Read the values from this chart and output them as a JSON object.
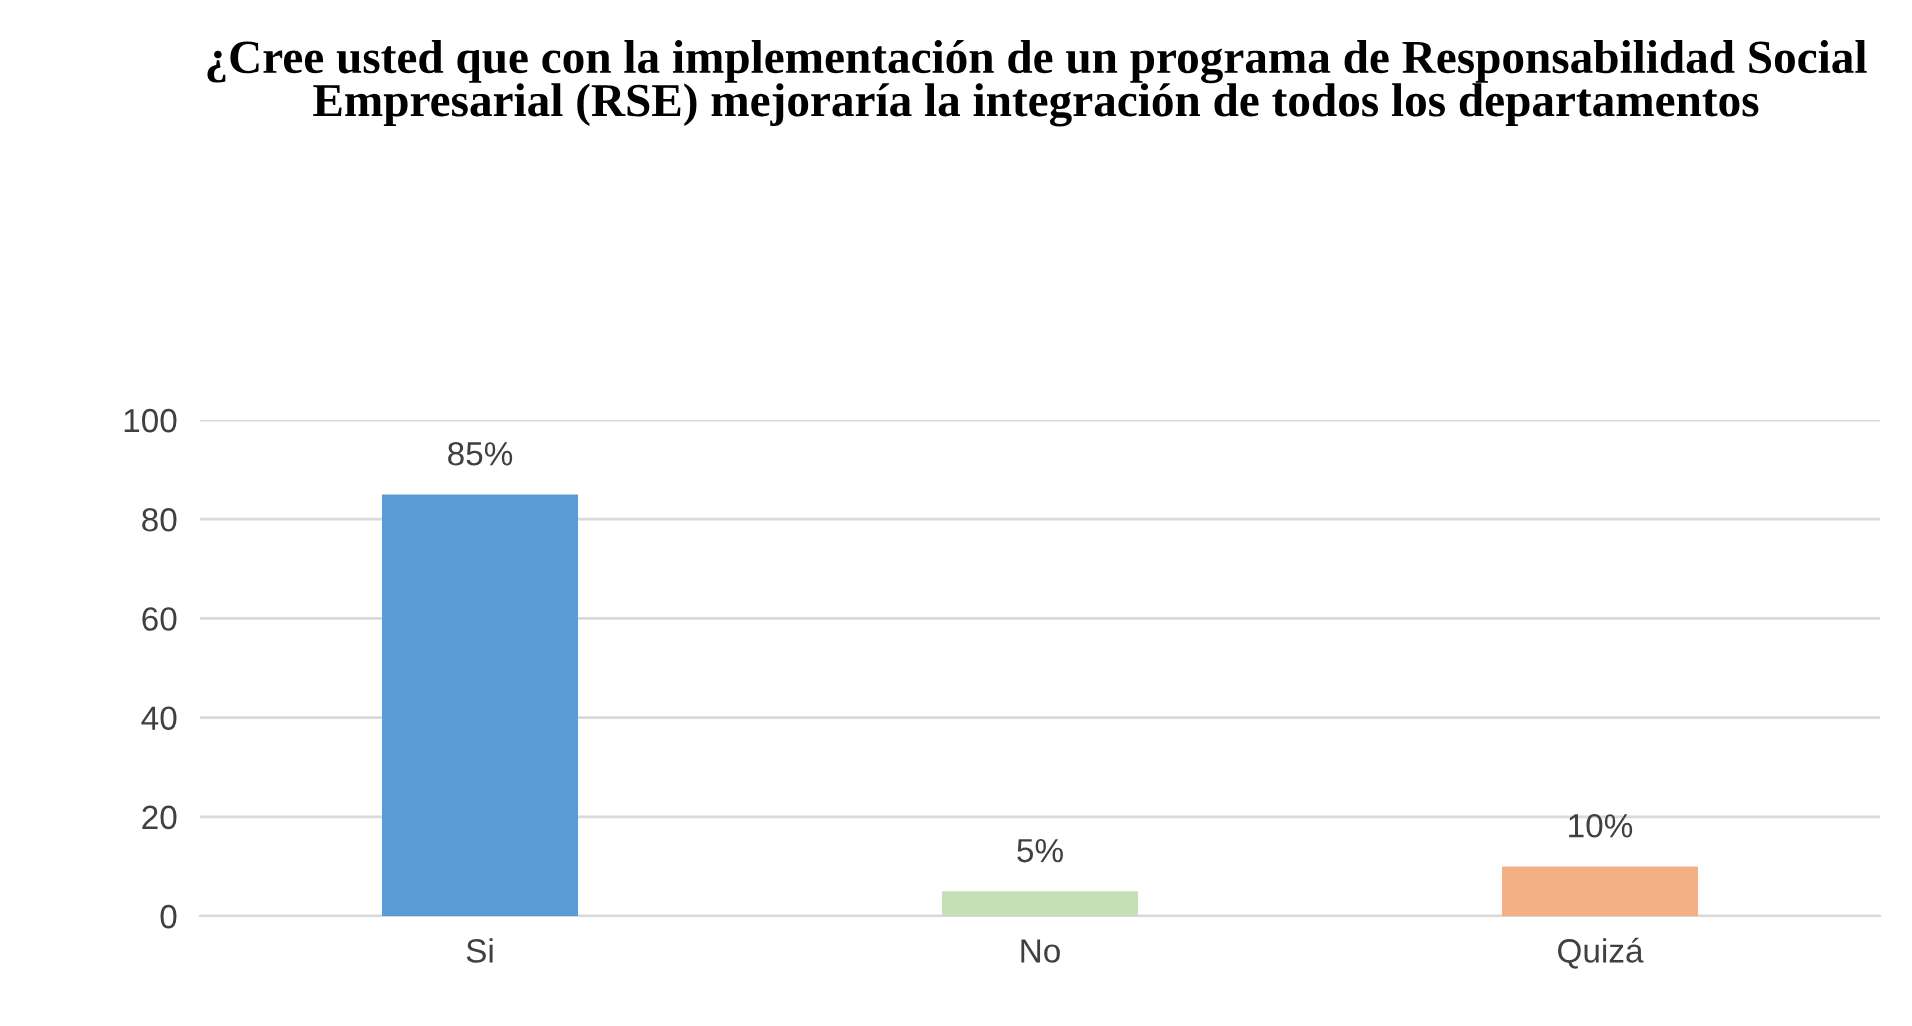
{
  "chart_data": {
    "type": "bar",
    "title": "¿Cree usted que con la implementación de un programa de Responsabilidad Social Empresarial (RSE) mejoraría la integración de todos los departamentos",
    "categories": [
      "Si",
      "No",
      "Quizá"
    ],
    "values": [
      85,
      5,
      10
    ],
    "colors": [
      "#5b9bd5",
      "#c5e0b4",
      "#f4b183"
    ],
    "value_labels": [
      "85%",
      "5%",
      "10%"
    ],
    "ylim": [
      0,
      100
    ],
    "yticks": [
      0,
      20,
      40,
      60,
      80,
      100
    ],
    "grid": "y",
    "legend": false
  }
}
